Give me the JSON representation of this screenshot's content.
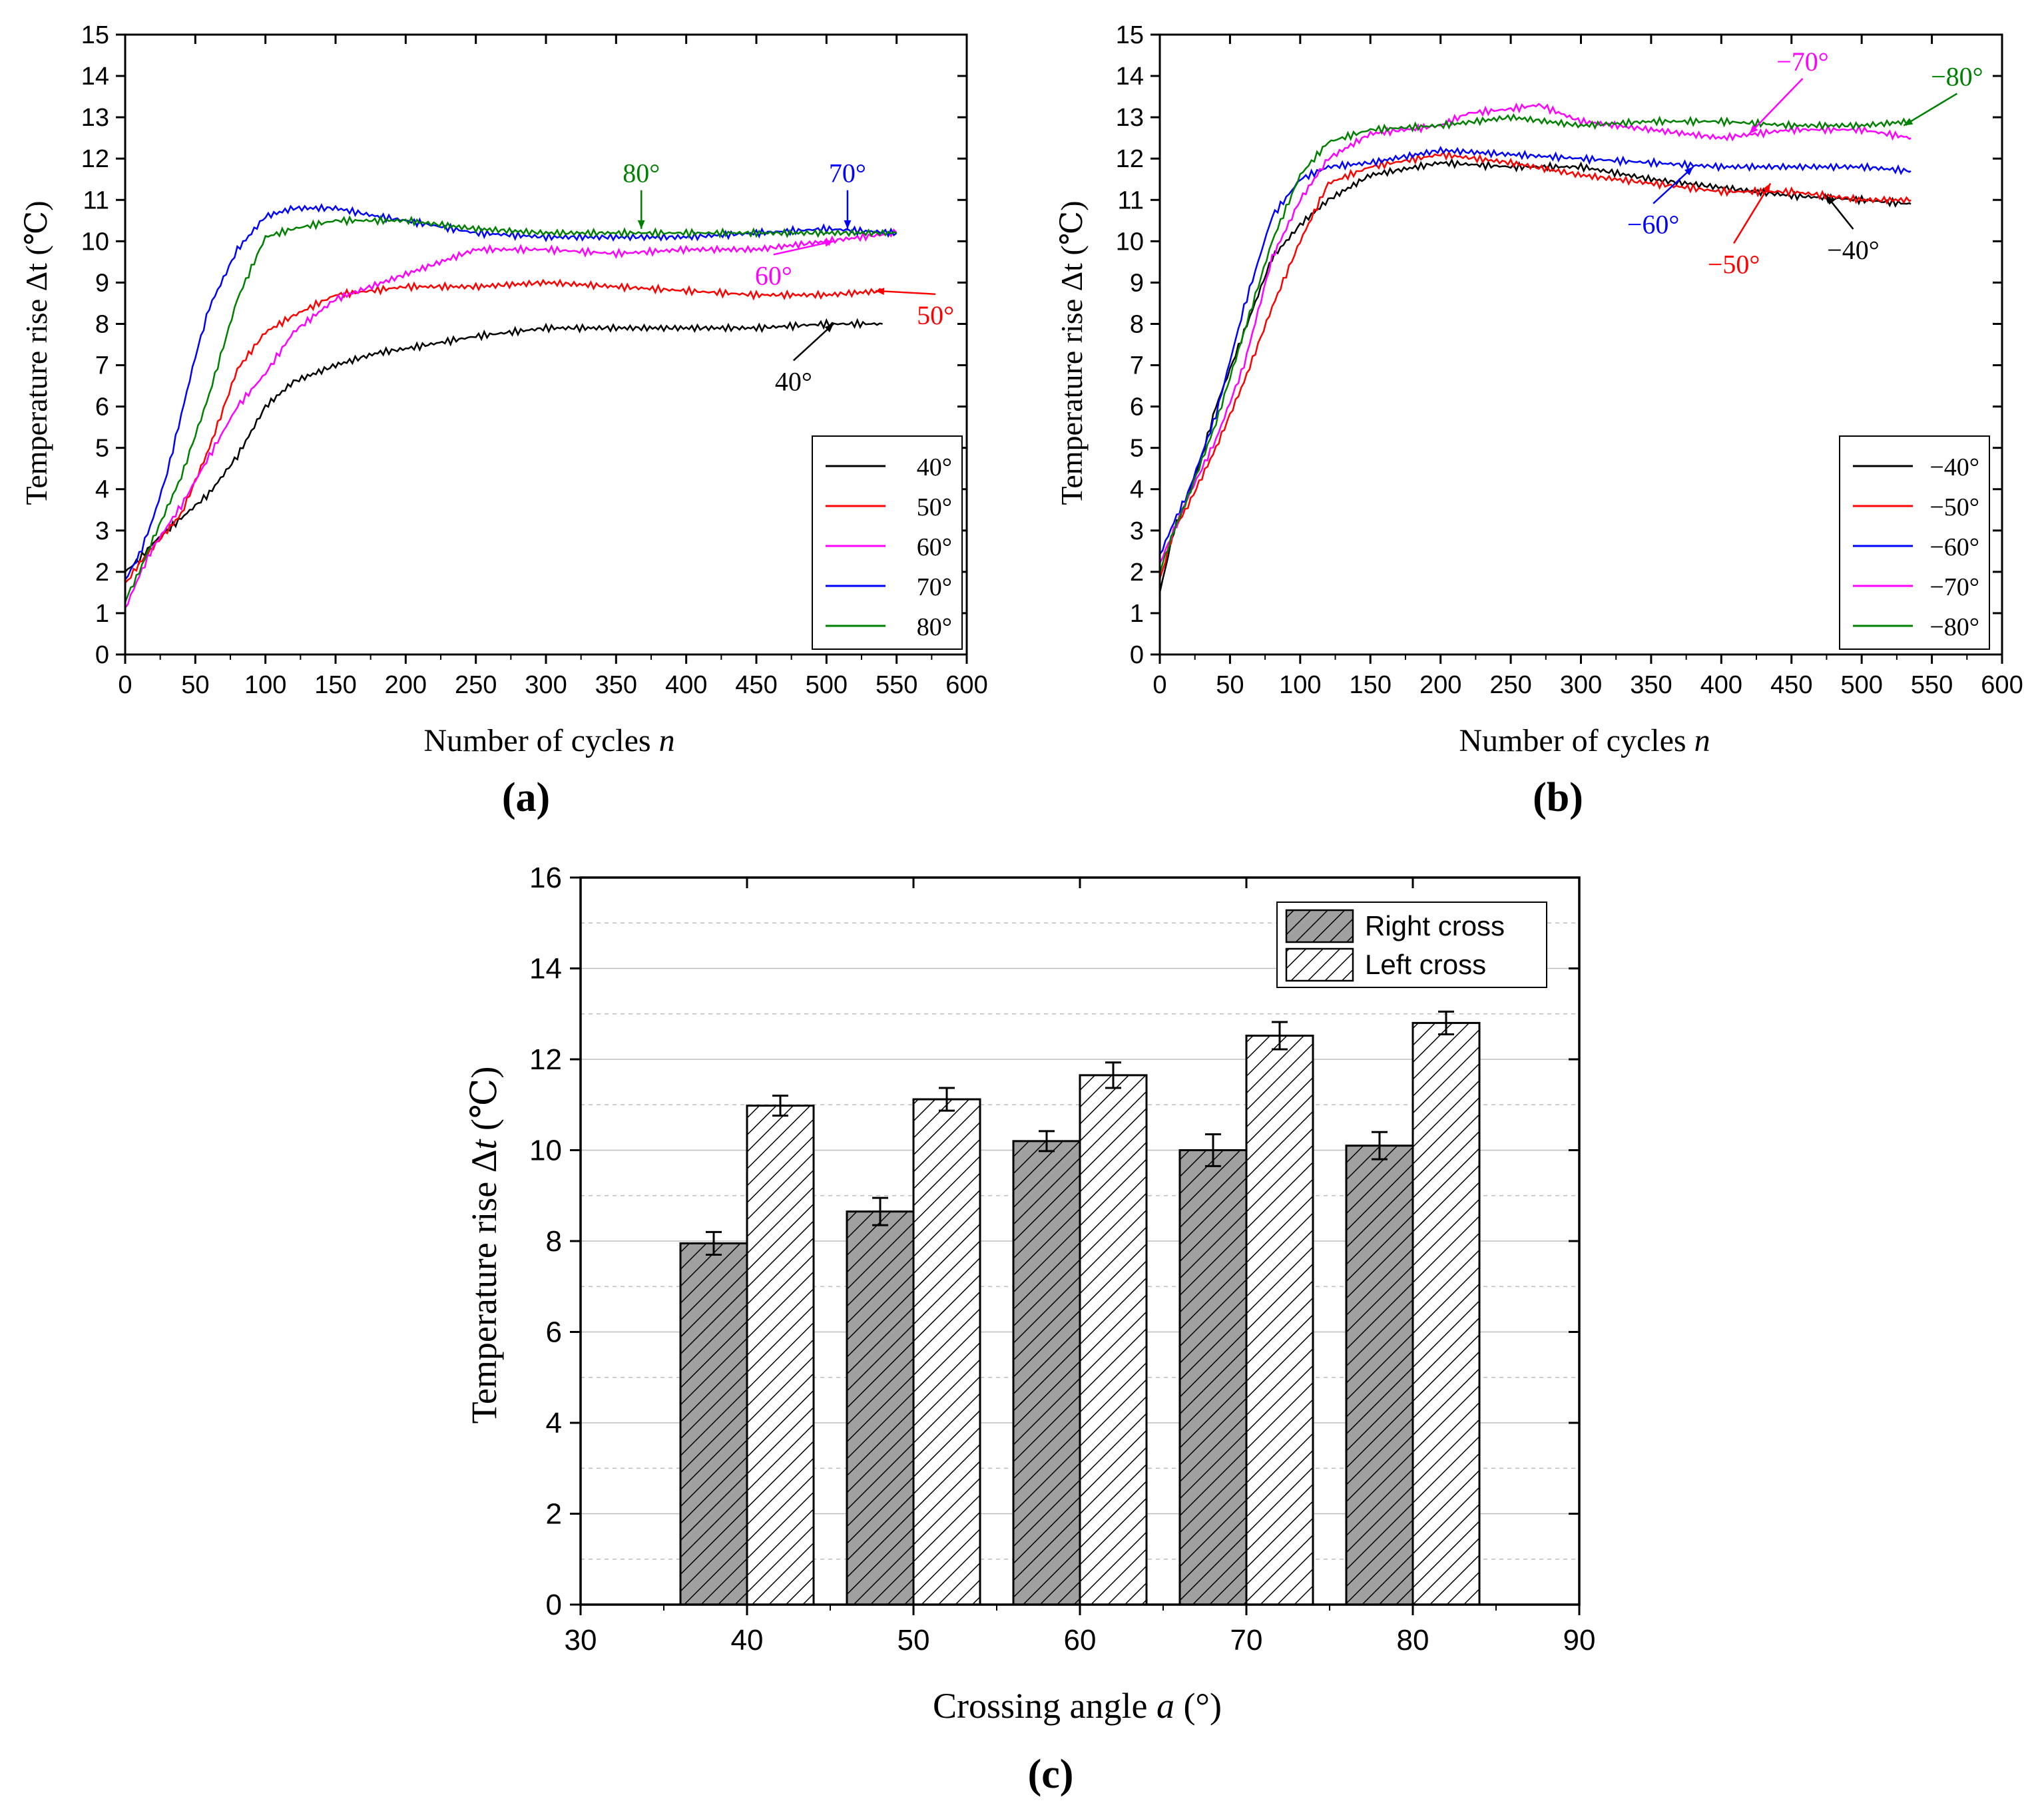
{
  "chart_data": [
    {
      "type": "line",
      "panel_label": "(a)",
      "xlabel": "Number of cycles",
      "xlabel_var": "n",
      "ylabel": "Temperature rise Δt (℃)",
      "xlim": [
        0,
        600
      ],
      "ylim": [
        0,
        15
      ],
      "xticks": [
        0,
        50,
        100,
        150,
        200,
        250,
        300,
        350,
        400,
        450,
        500,
        550,
        600
      ],
      "yticks": [
        0,
        1,
        2,
        3,
        4,
        5,
        6,
        7,
        8,
        9,
        10,
        11,
        12,
        13,
        14,
        15
      ],
      "legend": "bottom-right",
      "series": [
        {
          "name": "40°",
          "color": "#000000",
          "x": [
            0,
            10,
            20,
            40,
            60,
            80,
            100,
            120,
            150,
            180,
            200,
            250,
            300,
            350,
            400,
            450,
            500,
            540
          ],
          "y": [
            2.0,
            2.3,
            2.7,
            3.3,
            3.9,
            4.8,
            6.0,
            6.6,
            7.0,
            7.3,
            7.4,
            7.7,
            7.9,
            7.9,
            7.9,
            7.9,
            8.0,
            8.0
          ]
        },
        {
          "name": "50°",
          "color": "#ff0000",
          "x": [
            0,
            10,
            20,
            40,
            60,
            80,
            100,
            120,
            150,
            200,
            250,
            300,
            350,
            400,
            450,
            500,
            540
          ],
          "y": [
            1.7,
            2.2,
            2.6,
            3.4,
            5.0,
            6.9,
            7.8,
            8.2,
            8.7,
            8.9,
            8.9,
            9.0,
            8.9,
            8.8,
            8.7,
            8.7,
            8.8
          ]
        },
        {
          "name": "60°",
          "color": "#ff00ff",
          "x": [
            0,
            10,
            20,
            40,
            60,
            80,
            100,
            120,
            150,
            200,
            250,
            300,
            350,
            400,
            450,
            500,
            550
          ],
          "y": [
            1.1,
            1.9,
            2.6,
            3.6,
            4.8,
            6.0,
            6.8,
            7.8,
            8.6,
            9.2,
            9.8,
            9.8,
            9.7,
            9.8,
            9.8,
            10.0,
            10.2
          ]
        },
        {
          "name": "70°",
          "color": "#0000ff",
          "x": [
            0,
            10,
            20,
            30,
            40,
            50,
            60,
            80,
            100,
            120,
            150,
            180,
            200,
            250,
            300,
            350,
            400,
            450,
            500,
            550
          ],
          "y": [
            1.8,
            2.4,
            3.3,
            4.4,
            5.8,
            7.2,
            8.4,
            9.8,
            10.6,
            10.8,
            10.8,
            10.6,
            10.5,
            10.2,
            10.1,
            10.1,
            10.1,
            10.2,
            10.3,
            10.2
          ]
        },
        {
          "name": "80°",
          "color": "#008000",
          "x": [
            0,
            10,
            20,
            40,
            60,
            80,
            100,
            120,
            150,
            200,
            250,
            300,
            350,
            400,
            450,
            500,
            550
          ],
          "y": [
            1.3,
            2.0,
            2.8,
            4.3,
            6.3,
            8.6,
            10.1,
            10.3,
            10.5,
            10.5,
            10.3,
            10.2,
            10.2,
            10.2,
            10.2,
            10.2,
            10.2
          ]
        }
      ],
      "annotations": [
        {
          "text": "80°",
          "color": "#008000",
          "x": 368,
          "y": 10.3
        },
        {
          "text": "70°",
          "color": "#0000ff",
          "x": 515,
          "y": 10.3
        },
        {
          "text": "60°",
          "color": "#ff00ff",
          "x": 505,
          "y": 10.0
        },
        {
          "text": "50°",
          "color": "#ff0000",
          "x": 535,
          "y": 8.8
        },
        {
          "text": "40°",
          "color": "#000000",
          "x": 505,
          "y": 8.0
        }
      ]
    },
    {
      "type": "line",
      "panel_label": "(b)",
      "xlabel": "Number of cycles",
      "xlabel_var": "n",
      "ylabel": "Temperature rise Δt (℃)",
      "xlim": [
        0,
        600
      ],
      "ylim": [
        0,
        15
      ],
      "xticks": [
        0,
        50,
        100,
        150,
        200,
        250,
        300,
        350,
        400,
        450,
        500,
        550,
        600
      ],
      "yticks": [
        0,
        1,
        2,
        3,
        4,
        5,
        6,
        7,
        8,
        9,
        10,
        11,
        12,
        13,
        14,
        15
      ],
      "legend": "bottom-right",
      "series": [
        {
          "name": "−40°",
          "color": "#000000",
          "x": [
            0,
            10,
            20,
            30,
            40,
            60,
            80,
            100,
            120,
            150,
            200,
            250,
            300,
            350,
            400,
            450,
            500,
            535
          ],
          "y": [
            1.5,
            3.0,
            3.8,
            4.8,
            6.0,
            7.8,
            9.6,
            10.4,
            11.0,
            11.6,
            11.9,
            11.8,
            11.8,
            11.5,
            11.3,
            11.1,
            11.0,
            10.9
          ]
        },
        {
          "name": "−50°",
          "color": "#ff0000",
          "x": [
            0,
            10,
            20,
            40,
            60,
            80,
            100,
            120,
            150,
            200,
            250,
            300,
            350,
            400,
            450,
            500,
            535
          ],
          "y": [
            1.8,
            3.0,
            3.6,
            5.0,
            6.6,
            8.4,
            10.0,
            11.4,
            11.8,
            12.1,
            11.9,
            11.6,
            11.4,
            11.2,
            11.2,
            11.0,
            11.0
          ]
        },
        {
          "name": "−60°",
          "color": "#0000ff",
          "x": [
            0,
            10,
            20,
            40,
            60,
            80,
            100,
            120,
            150,
            200,
            250,
            300,
            350,
            400,
            450,
            500,
            535
          ],
          "y": [
            2.4,
            3.2,
            3.9,
            5.8,
            8.4,
            10.6,
            11.5,
            11.8,
            11.9,
            12.2,
            12.1,
            12.0,
            11.9,
            11.8,
            11.8,
            11.8,
            11.7
          ]
        },
        {
          "name": "−70°",
          "color": "#ff00ff",
          "x": [
            0,
            10,
            20,
            40,
            60,
            80,
            100,
            120,
            150,
            200,
            220,
            250,
            270,
            300,
            350,
            400,
            450,
            500,
            535
          ],
          "y": [
            2.2,
            3.0,
            3.8,
            5.2,
            7.0,
            9.6,
            11.0,
            12.0,
            12.6,
            12.8,
            13.1,
            13.2,
            13.3,
            12.9,
            12.7,
            12.5,
            12.7,
            12.7,
            12.5
          ]
        },
        {
          "name": "−80°",
          "color": "#008000",
          "x": [
            0,
            10,
            20,
            40,
            60,
            80,
            100,
            120,
            150,
            200,
            250,
            300,
            350,
            400,
            450,
            500,
            535
          ],
          "y": [
            2.0,
            3.0,
            3.8,
            5.6,
            7.8,
            10.0,
            11.6,
            12.4,
            12.7,
            12.8,
            13.0,
            12.8,
            12.9,
            12.9,
            12.8,
            12.8,
            12.9
          ]
        }
      ],
      "annotations": [
        {
          "text": "−80°",
          "color": "#008000",
          "x": 530,
          "y": 12.8
        },
        {
          "text": "−70°",
          "color": "#ff00ff",
          "x": 420,
          "y": 12.6
        },
        {
          "text": "−60°",
          "color": "#0000ff",
          "x": 380,
          "y": 11.8
        },
        {
          "text": "−50°",
          "color": "#ff0000",
          "x": 435,
          "y": 11.4
        },
        {
          "text": "−40°",
          "color": "#000000",
          "x": 475,
          "y": 11.1
        }
      ]
    },
    {
      "type": "bar",
      "panel_label": "(c)",
      "xlabel": "Crossing angle",
      "xlabel_var": "a",
      "xlabel_unit": "(°)",
      "ylabel": "Temperature rise Δt (℃)",
      "xlim": [
        30,
        90
      ],
      "ylim": [
        0,
        16
      ],
      "xticks": [
        30,
        40,
        50,
        60,
        70,
        80,
        90
      ],
      "yticks": [
        0,
        2,
        4,
        6,
        8,
        10,
        12,
        14,
        16
      ],
      "grid": true,
      "legend": "top-right",
      "categories": [
        40,
        50,
        60,
        70,
        80
      ],
      "series": [
        {
          "name": "Right cross",
          "values": [
            7.95,
            8.65,
            10.2,
            10.0,
            10.1
          ],
          "errors": [
            0.25,
            0.3,
            0.22,
            0.35,
            0.3
          ],
          "fill": "#a0a0a0",
          "hatch": "diagonal"
        },
        {
          "name": "Left cross",
          "values": [
            10.98,
            11.12,
            11.65,
            12.52,
            12.8
          ],
          "errors": [
            0.22,
            0.25,
            0.28,
            0.3,
            0.25
          ],
          "fill": "#ffffff",
          "hatch": "diagonal"
        }
      ]
    }
  ]
}
